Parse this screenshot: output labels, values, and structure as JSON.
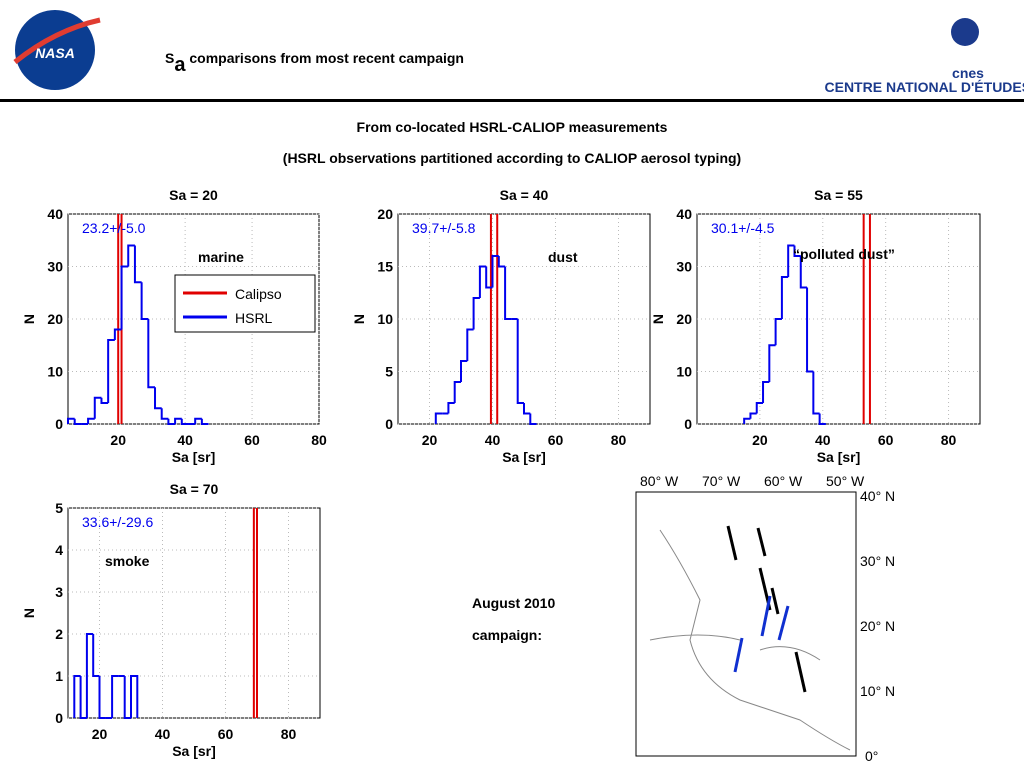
{
  "slide": {
    "title_main": "S",
    "title_sub": "a",
    "title_rest": " comparisons from most recent campaign",
    "subtitle_1": "From co-located HSRL-CALIOP measurements",
    "subtitle_2": "(HSRL observations partitioned according to CALIOP aerosol typing)",
    "nasa_logo": "NASA",
    "cnes_logo": "cnes",
    "cnes_caption": "CENTRE NATIONAL D'ÉTUDES SPATIALES",
    "campaign_1": "August 2010",
    "campaign_2": "campaign:",
    "map_lon_labels": [
      "80° W",
      "70° W",
      "60° W",
      "50° W"
    ],
    "map_lat_labels": [
      "40° N",
      "30° N",
      "20° N",
      "10° N",
      "0°"
    ]
  },
  "chart_data": [
    {
      "type": "histogram",
      "title": "Sa = 20",
      "xlabel": "Sa [sr]",
      "ylabel": "N",
      "label": "marine",
      "annotation": "23.2+/-5.0",
      "bins": [
        5,
        7,
        9,
        11,
        13,
        15,
        17,
        19,
        21,
        23,
        25,
        27,
        29,
        31,
        33,
        35,
        37,
        39,
        41,
        43,
        45,
        47
      ],
      "values": [
        1,
        0,
        0,
        1,
        5,
        4,
        16,
        18,
        30,
        34,
        27,
        20,
        7,
        3,
        1,
        0,
        1,
        0,
        0,
        1,
        0
      ],
      "color": "#0000ee",
      "vlines": [
        20,
        21
      ],
      "vline_color": "#e00000",
      "legend": [
        {
          "name": "Calipso",
          "color": "#e00000"
        },
        {
          "name": "HSRL",
          "color": "#0000ee"
        }
      ],
      "xlim": [
        5,
        80
      ],
      "ylim": [
        0,
        40
      ],
      "xticks": [
        20,
        40,
        60,
        80
      ],
      "yticks": [
        0,
        10,
        20,
        30,
        40
      ],
      "grid": true
    },
    {
      "type": "histogram",
      "title": "Sa = 40",
      "xlabel": "Sa [sr]",
      "ylabel": "N",
      "label": "dust",
      "annotation": "39.7+/-5.8",
      "bins": [
        22,
        24,
        26,
        28,
        30,
        32,
        34,
        36,
        38,
        40,
        42,
        44,
        46,
        48,
        50,
        52,
        54
      ],
      "values": [
        1,
        1,
        2,
        4,
        6,
        9,
        12,
        15,
        13,
        16,
        15,
        10,
        10,
        2,
        1,
        0
      ],
      "color": "#0000ee",
      "vlines": [
        39.5,
        41.5
      ],
      "vline_color": "#e00000",
      "xlim": [
        10,
        90
      ],
      "ylim": [
        0,
        20
      ],
      "xticks": [
        20,
        40,
        60,
        80
      ],
      "yticks": [
        0,
        5,
        10,
        15,
        20
      ],
      "grid": true
    },
    {
      "type": "histogram",
      "title": "Sa = 55",
      "xlabel": "Sa [sr]",
      "ylabel": "N",
      "label": "“polluted dust”",
      "annotation": "30.1+/-4.5",
      "bins": [
        15,
        17,
        19,
        21,
        23,
        25,
        27,
        29,
        31,
        33,
        35,
        37,
        39,
        41
      ],
      "values": [
        1,
        2,
        4,
        8,
        15,
        20,
        28,
        34,
        32,
        26,
        10,
        2,
        0
      ],
      "color": "#0000ee",
      "vlines": [
        53,
        55
      ],
      "vline_color": "#e00000",
      "xlim": [
        0,
        90
      ],
      "ylim": [
        0,
        40
      ],
      "xticks": [
        20,
        40,
        60,
        80
      ],
      "yticks": [
        0,
        10,
        20,
        30,
        40
      ],
      "grid": true
    },
    {
      "type": "histogram",
      "title": "Sa = 70",
      "xlabel": "Sa [sr]",
      "ylabel": "N",
      "label": "smoke",
      "annotation": "33.6+/-29.6",
      "bins": [
        12,
        14,
        16,
        18,
        20,
        22,
        24,
        26,
        28,
        30,
        32
      ],
      "values": [
        1,
        0,
        2,
        1,
        0,
        0,
        1,
        1,
        0,
        1
      ],
      "color": "#0000ee",
      "vlines": [
        69,
        70
      ],
      "vline_color": "#e00000",
      "xlim": [
        10,
        90
      ],
      "ylim": [
        0,
        5
      ],
      "xticks": [
        20,
        40,
        60,
        80
      ],
      "yticks": [
        0,
        1,
        2,
        3,
        4,
        5
      ],
      "grid": true
    }
  ]
}
